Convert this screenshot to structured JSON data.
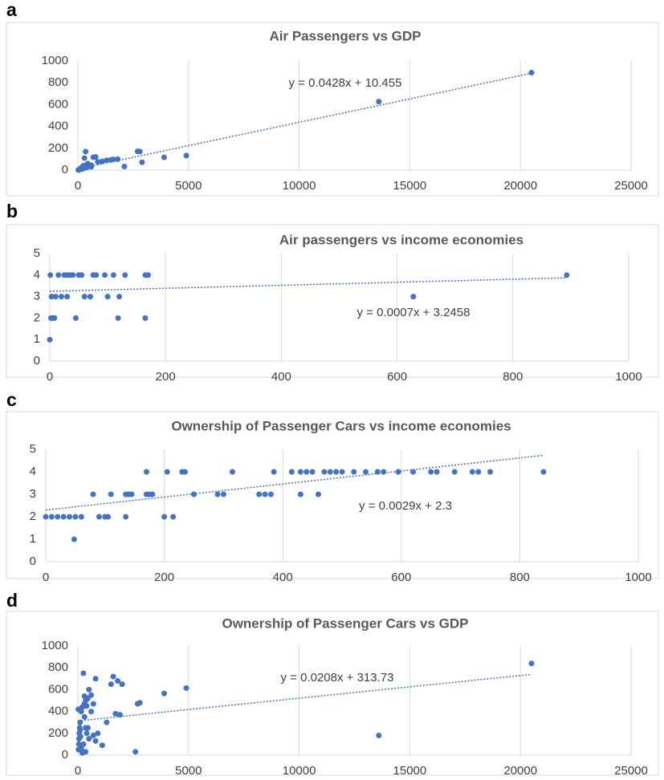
{
  "chart_data": [
    {
      "type": "scatter",
      "label": "a",
      "title": "Air Passengers vs  GDP",
      "annotation": "y = 0.0428x + 10.455",
      "color": "#4472c4",
      "x": [
        20500,
        13600,
        4900,
        3900,
        2800,
        2700,
        2900,
        2100,
        1800,
        1600,
        1500,
        1300,
        1100,
        900,
        800,
        700,
        600,
        500,
        450,
        400,
        350,
        300,
        250,
        200,
        150,
        120,
        100,
        80,
        60,
        40,
        30,
        20,
        500,
        600,
        400,
        300,
        200,
        100
      ],
      "y": [
        893,
        628,
        133,
        117,
        170,
        172,
        72,
        33,
        100,
        98,
        95,
        90,
        80,
        75,
        120,
        118,
        30,
        40,
        60,
        50,
        170,
        110,
        40,
        30,
        20,
        15,
        10,
        5,
        5,
        3,
        2,
        1,
        35,
        45,
        25,
        20,
        10,
        8
      ],
      "trendline": {
        "x": [
          0,
          20500
        ],
        "y": [
          10,
          888
        ]
      },
      "xlim": [
        0,
        25000
      ],
      "ylim": [
        0,
        1000
      ],
      "xticks": [
        0,
        5000,
        10000,
        15000,
        20000,
        25000
      ],
      "yticks": [
        0,
        200,
        400,
        600,
        800,
        1000
      ],
      "grid": "x"
    },
    {
      "type": "scatter",
      "label": "b",
      "title": "Air passengers vs income economies",
      "annotation": "y = 0.0007x + 3.2458",
      "color": "#4472c4",
      "x": [
        893,
        628,
        0,
        170,
        165,
        120,
        118,
        165,
        100,
        95,
        80,
        75,
        60,
        45,
        40,
        35,
        30,
        25,
        20,
        15,
        10,
        8,
        5,
        3,
        2,
        1,
        50,
        55,
        130,
        110,
        70,
        30
      ],
      "y": [
        4,
        3,
        1,
        4,
        4,
        3,
        2,
        2,
        3,
        4,
        4,
        4,
        3,
        2,
        4,
        4,
        4,
        4,
        3,
        4,
        3,
        2,
        2,
        3,
        2,
        4,
        4,
        4,
        4,
        4,
        3,
        3
      ],
      "trendline": {
        "x": [
          0,
          893
        ],
        "y": [
          3.246,
          3.871
        ]
      },
      "xlim": [
        0,
        1000
      ],
      "ylim": [
        0,
        5
      ],
      "xticks": [
        0,
        200,
        400,
        600,
        800,
        1000
      ],
      "yticks": [
        0,
        1,
        2,
        3,
        4,
        5
      ],
      "grid": "x"
    },
    {
      "type": "scatter",
      "label": "c",
      "title": "Ownership of Passenger Cars vs income economies",
      "annotation": "y = 0.0029x + 2.3",
      "color": "#4472c4",
      "x": [
        840,
        750,
        730,
        720,
        690,
        660,
        650,
        620,
        595,
        570,
        560,
        540,
        520,
        500,
        490,
        480,
        470,
        450,
        440,
        430,
        415,
        385,
        315,
        235,
        230,
        205,
        170,
        460,
        430,
        380,
        370,
        360,
        300,
        290,
        250,
        180,
        175,
        170,
        145,
        140,
        135,
        110,
        80,
        50,
        40,
        30,
        20,
        10,
        0,
        60,
        90,
        100,
        105,
        135,
        200,
        215,
        48
      ],
      "y": [
        4,
        4,
        4,
        4,
        4,
        4,
        4,
        4,
        4,
        4,
        4,
        4,
        4,
        4,
        4,
        4,
        4,
        4,
        4,
        4,
        4,
        4,
        4,
        4,
        4,
        4,
        4,
        3,
        3,
        3,
        3,
        3,
        3,
        3,
        3,
        3,
        3,
        3,
        3,
        3,
        3,
        3,
        3,
        2,
        2,
        2,
        2,
        2,
        2,
        2,
        2,
        2,
        2,
        2,
        2,
        2,
        1
      ],
      "trendline": {
        "x": [
          0,
          840
        ],
        "y": [
          2.3,
          4.736
        ]
      },
      "xlim": [
        0,
        1000
      ],
      "ylim": [
        0,
        5
      ],
      "xticks": [
        0,
        200,
        400,
        600,
        800,
        1000
      ],
      "yticks": [
        0,
        1,
        2,
        3,
        4,
        5
      ],
      "grid": "x"
    },
    {
      "type": "scatter",
      "label": "d",
      "title": "Ownership of Passenger Cars vs GDP",
      "annotation": "y = 0.0208x + 313.73",
      "color": "#4472c4",
      "x": [
        20500,
        13600,
        4900,
        3900,
        2800,
        2700,
        2600,
        2000,
        1900,
        1800,
        1700,
        1600,
        1500,
        1300,
        1100,
        900,
        800,
        700,
        600,
        500,
        450,
        400,
        350,
        300,
        250,
        200,
        150,
        100,
        80,
        60,
        50,
        40,
        30,
        20,
        300,
        350,
        400,
        250,
        200,
        150,
        450,
        500,
        600,
        700,
        800,
        350,
        300,
        100,
        120
      ],
      "y": [
        840,
        180,
        615,
        565,
        480,
        470,
        30,
        650,
        370,
        680,
        380,
        720,
        650,
        300,
        90,
        200,
        700,
        470,
        550,
        600,
        520,
        450,
        500,
        540,
        750,
        440,
        400,
        300,
        250,
        200,
        150,
        100,
        50,
        420,
        350,
        250,
        200,
        100,
        20,
        60,
        250,
        150,
        400,
        180,
        130,
        30,
        470,
        230,
        170
      ],
      "trendline": {
        "x": [
          0,
          20500
        ],
        "y": [
          313.73,
          740
        ]
      },
      "xlim": [
        0,
        25000
      ],
      "ylim": [
        0,
        1000
      ],
      "xticks": [
        0,
        5000,
        10000,
        15000,
        20000,
        25000
      ],
      "yticks": [
        0,
        200,
        400,
        600,
        800,
        1000
      ],
      "grid": "x"
    }
  ]
}
